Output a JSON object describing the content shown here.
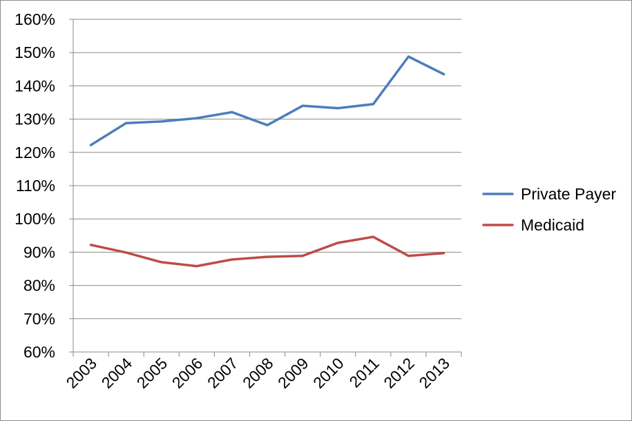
{
  "chart_data": {
    "type": "line",
    "title": "",
    "xlabel": "",
    "ylabel": "",
    "categories": [
      "2003",
      "2004",
      "2005",
      "2006",
      "2007",
      "2008",
      "2009",
      "2010",
      "2011",
      "2012",
      "2013"
    ],
    "ylim": [
      60,
      160
    ],
    "ytick_step": 10,
    "yticks": [
      "60%",
      "70%",
      "80%",
      "90%",
      "100%",
      "110%",
      "120%",
      "130%",
      "140%",
      "150%",
      "160%"
    ],
    "grid": true,
    "legend_position": "right",
    "series": [
      {
        "name": "Private Payer",
        "color": "#4a7ebb",
        "values": [
          122.2,
          128.8,
          129.3,
          130.3,
          132.1,
          128.2,
          134.0,
          133.3,
          134.5,
          148.8,
          143.5
        ]
      },
      {
        "name": "Medicaid",
        "color": "#be4b48",
        "values": [
          92.2,
          89.9,
          87.0,
          85.8,
          87.8,
          88.6,
          88.9,
          92.8,
          94.6,
          88.9,
          89.7
        ]
      }
    ]
  }
}
